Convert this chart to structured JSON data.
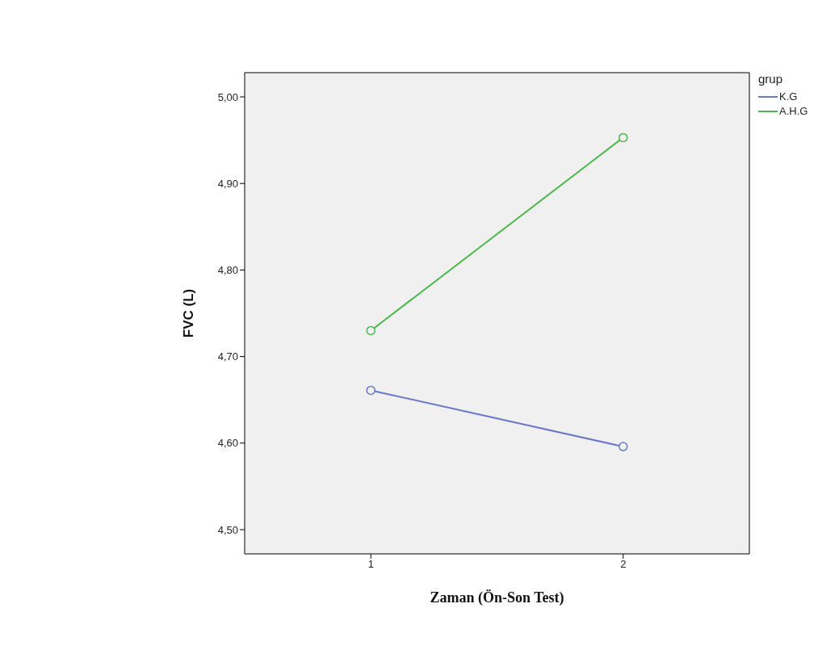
{
  "chart_data": {
    "type": "line",
    "xlabel": "Zaman (Ön-Son Test)",
    "ylabel": "FVC (L)",
    "legend_title": "grup",
    "categories": [
      "1",
      "2"
    ],
    "series": [
      {
        "name": "K.G",
        "color": "#6a78c8",
        "values": [
          4.661,
          4.596
        ]
      },
      {
        "name": "A.H.G",
        "color": "#4cb84c",
        "values": [
          4.73,
          4.953
        ]
      }
    ],
    "ylim": [
      4.472,
      5.028
    ],
    "yticks": [
      {
        "value": 4.5,
        "label": "4,50"
      },
      {
        "value": 4.6,
        "label": "4,60"
      },
      {
        "value": 4.7,
        "label": "4,70"
      },
      {
        "value": 4.8,
        "label": "4,80"
      },
      {
        "value": 4.9,
        "label": "4,90"
      },
      {
        "value": 5.0,
        "label": "5,00"
      }
    ],
    "grid": false,
    "legend": "top right",
    "marker": "circle",
    "line_style": "solid"
  }
}
